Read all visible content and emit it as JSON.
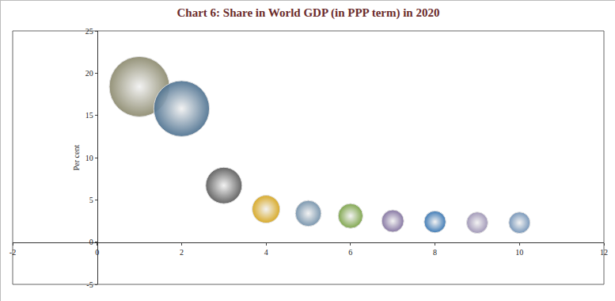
{
  "chart_data": {
    "type": "bubble",
    "title": "Chart 6: Share in World GDP (in PPP term) in 2020",
    "y_label": "Per cent",
    "x": [
      1,
      2,
      3,
      4,
      5,
      6,
      7,
      8,
      9,
      10
    ],
    "values": [
      18.4,
      15.8,
      6.7,
      3.9,
      3.4,
      3.1,
      2.5,
      2.4,
      2.3,
      2.3
    ],
    "sizes": [
      18.4,
      15.8,
      6.7,
      3.9,
      3.4,
      3.1,
      2.5,
      2.4,
      2.3,
      2.3
    ],
    "colors": [
      "#8c8a6e",
      "#4d7190",
      "#5a5a5a",
      "#d6a419",
      "#6f8ea8",
      "#76a040",
      "#7d6c9c",
      "#2f70b0",
      "#9a90b3",
      "#6d8fb5"
    ],
    "xlim": [
      -2,
      12
    ],
    "xticks": [
      -2,
      0,
      2,
      4,
      6,
      8,
      10,
      12
    ],
    "ylim": [
      -5,
      25
    ],
    "yticks": [
      -5,
      0,
      5,
      10,
      15,
      20,
      25
    ],
    "grid": false
  }
}
